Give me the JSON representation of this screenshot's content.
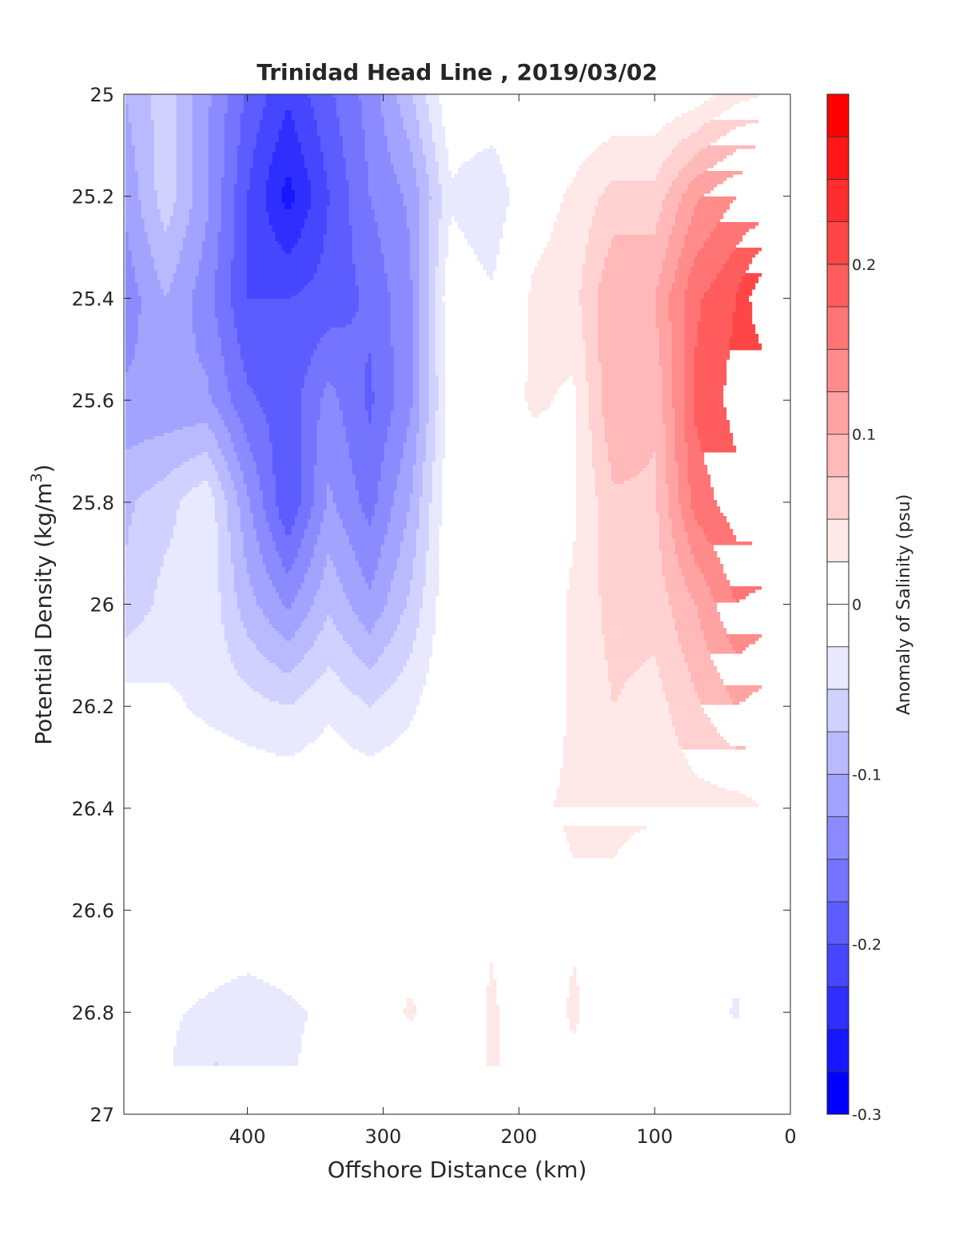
{
  "chart_data": {
    "type": "heatmap",
    "title": "Trinidad Head Line , 2019/03/02",
    "xlabel": "Offshore Distance (km)",
    "ylabel": "Potential Density (kg/m3)",
    "ylabel_parts": {
      "main": "Potential Density (kg/m",
      "sup": "3",
      "close": ")"
    },
    "xlim": [
      491,
      0
    ],
    "ylim": [
      25,
      27
    ],
    "x_reversed": true,
    "y_reversed": true,
    "xticks": [
      400,
      300,
      200,
      100,
      0
    ],
    "xtick_labels": [
      "400",
      "300",
      "200",
      "100",
      "0"
    ],
    "yticks": [
      25,
      25.2,
      25.4,
      25.6,
      25.8,
      26,
      26.2,
      26.4,
      26.6,
      26.8,
      27
    ],
    "ytick_labels": [
      "25",
      "25.2",
      "25.4",
      "25.6",
      "25.8",
      "26",
      "26.2",
      "26.4",
      "26.6",
      "26.8",
      "27"
    ],
    "colorbar": {
      "label": "Anomaly of Salinity (psu)",
      "range": [
        -0.3,
        0.3
      ],
      "level_step": 0.025,
      "ticks": [
        -0.3,
        -0.2,
        -0.1,
        0,
        0.1,
        0.2
      ],
      "tick_labels": [
        "-0.3",
        "-0.2",
        "-0.1",
        "0",
        "0.1",
        "0.2"
      ],
      "low_color": "#0000ff",
      "high_color": "#ff0000"
    },
    "x": [
      490,
      460,
      430,
      400,
      370,
      340,
      310,
      280,
      250,
      220,
      190,
      160,
      130,
      100,
      70,
      40,
      20
    ],
    "y": [
      25.0,
      25.2,
      25.4,
      25.6,
      25.8,
      26.0,
      26.2,
      26.4,
      26.6,
      26.8,
      26.9
    ],
    "z": [
      [
        -0.1,
        -0.06,
        -0.12,
        -0.18,
        -0.22,
        -0.18,
        -0.14,
        -0.08,
        0,
        0,
        0,
        0,
        0,
        0,
        0.01,
        0.04,
        0.05
      ],
      [
        -0.12,
        -0.06,
        -0.12,
        -0.2,
        -0.26,
        -0.2,
        -0.15,
        -0.12,
        -0.03,
        -0.05,
        0.01,
        0.03,
        0.06,
        0.06,
        0.12,
        0.15,
        0.15
      ],
      [
        -0.14,
        -0.1,
        -0.14,
        -0.2,
        -0.2,
        -0.19,
        -0.17,
        -0.13,
        0,
        -0.02,
        0.03,
        0.04,
        0.1,
        0.1,
        0.17,
        0.2,
        0.25
      ],
      [
        -0.12,
        -0.12,
        -0.12,
        -0.17,
        -0.19,
        -0.14,
        -0.18,
        -0.13,
        -0.01,
        0,
        0.03,
        0.02,
        0.1,
        0.08,
        0.18,
        0.21,
        0.2
      ],
      [
        -0.08,
        -0.06,
        -0.03,
        -0.12,
        -0.2,
        -0.12,
        -0.16,
        -0.1,
        0,
        0.01,
        0,
        0.02,
        0.07,
        0.07,
        0.16,
        0.19,
        0.2
      ],
      [
        -0.07,
        -0.04,
        -0.03,
        -0.09,
        -0.13,
        -0.08,
        -0.12,
        -0.07,
        0,
        0.01,
        0,
        0.03,
        0.06,
        0.06,
        0.1,
        0.15,
        0.14
      ],
      [
        -0.01,
        -0.02,
        -0.03,
        -0.04,
        -0.05,
        -0.03,
        -0.05,
        -0.03,
        0,
        0.01,
        0,
        0.03,
        0.05,
        0.04,
        0.07,
        0.1,
        0.09
      ],
      [
        0,
        0,
        0,
        0,
        0,
        0,
        0,
        0,
        0,
        0,
        0.02,
        0.03,
        0.03,
        0.03,
        0.04,
        0.04,
        0.05
      ],
      [
        0,
        0,
        0,
        0,
        0,
        0,
        0,
        0,
        0,
        0.02,
        0,
        0.02,
        0.02,
        0,
        0,
        0,
        0
      ],
      [
        0,
        -0.02,
        -0.03,
        -0.04,
        -0.03,
        -0.02,
        0,
        0.03,
        0,
        0.03,
        0,
        0.03,
        0,
        0,
        0,
        -0.03,
        0
      ],
      [
        0,
        -0.02,
        -0.05,
        -0.05,
        -0.03,
        -0.01,
        0,
        0,
        0,
        0.03,
        0,
        0.02,
        0,
        0,
        0,
        0,
        0
      ]
    ]
  }
}
